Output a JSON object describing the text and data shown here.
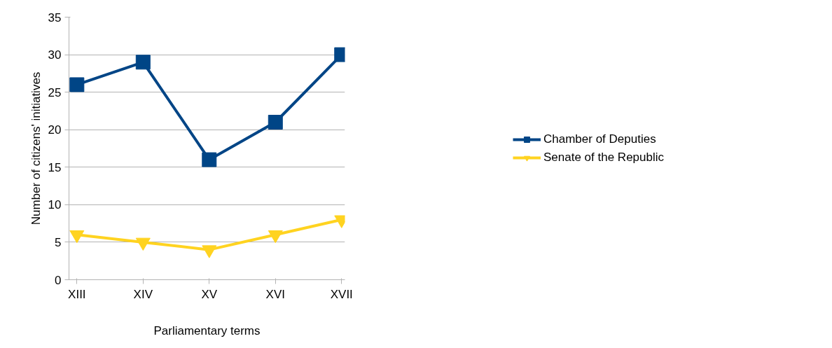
{
  "chart_data": {
    "type": "line",
    "xlabel": "Parliamentary terms",
    "ylabel": "Number of citizens' initiatives",
    "categories": [
      "XIII",
      "XIV",
      "XV",
      "XVI",
      "XVII"
    ],
    "series": [
      {
        "name": "Chamber of Deputies",
        "color": "#004586",
        "marker": "square",
        "values": [
          26,
          29,
          16,
          21,
          30
        ]
      },
      {
        "name": "Senate of the Republic",
        "color": "#ffd320",
        "marker": "triangle",
        "values": [
          6,
          5,
          4,
          6,
          8
        ]
      }
    ],
    "ylim": [
      0,
      35
    ],
    "yticks": [
      0,
      5,
      10,
      15,
      20,
      25,
      30,
      35
    ],
    "grid": "y",
    "legend": "right",
    "line_style": "solid"
  }
}
